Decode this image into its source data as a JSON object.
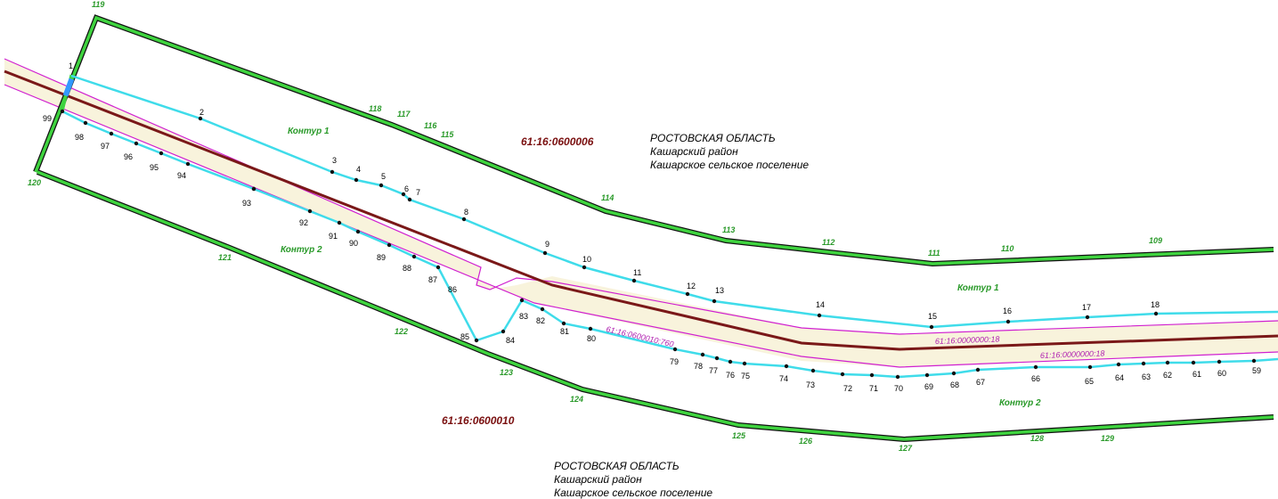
{
  "contour_points": [
    "1",
    "2",
    "3",
    "4",
    "5",
    "6",
    "7",
    "8",
    "9",
    "10",
    "11",
    "12",
    "13",
    "14",
    "15",
    "16",
    "17",
    "18",
    "59",
    "60",
    "61",
    "62",
    "63",
    "64",
    "65",
    "66",
    "67",
    "68",
    "69",
    "70",
    "71",
    "72",
    "73",
    "74",
    "75",
    "76",
    "77",
    "78",
    "79",
    "80",
    "81",
    "82",
    "83",
    "84",
    "85",
    "86",
    "87",
    "88",
    "89",
    "90",
    "91",
    "92",
    "93",
    "94",
    "95",
    "96",
    "97",
    "98",
    "99"
  ],
  "boundary_points": [
    "109",
    "110",
    "111",
    "112",
    "113",
    "114",
    "115",
    "116",
    "117",
    "118",
    "119",
    "120",
    "121",
    "122",
    "123",
    "124",
    "125",
    "126",
    "127",
    "128",
    "129"
  ],
  "contour_labels": [
    "Контур 1",
    "Контур 2",
    "Контур 1",
    "Контур 2"
  ],
  "parcels": [
    "61:16:0600006",
    "61:16:0600010"
  ],
  "road_labels": [
    "61:16:0600010:760",
    "61:16:0000000:18",
    "61:16:0000000:18"
  ],
  "regions": [
    {
      "name": "РОСТОВСКАЯ ОБЛАСТЬ",
      "district": "Кашарский район",
      "settlement": "Кашарское сельское поселение"
    },
    {
      "name": "РОСТОВСКАЯ ОБЛАСТЬ",
      "district": "Кашарский район",
      "settlement": "Кашарское сельское поселение"
    }
  ]
}
